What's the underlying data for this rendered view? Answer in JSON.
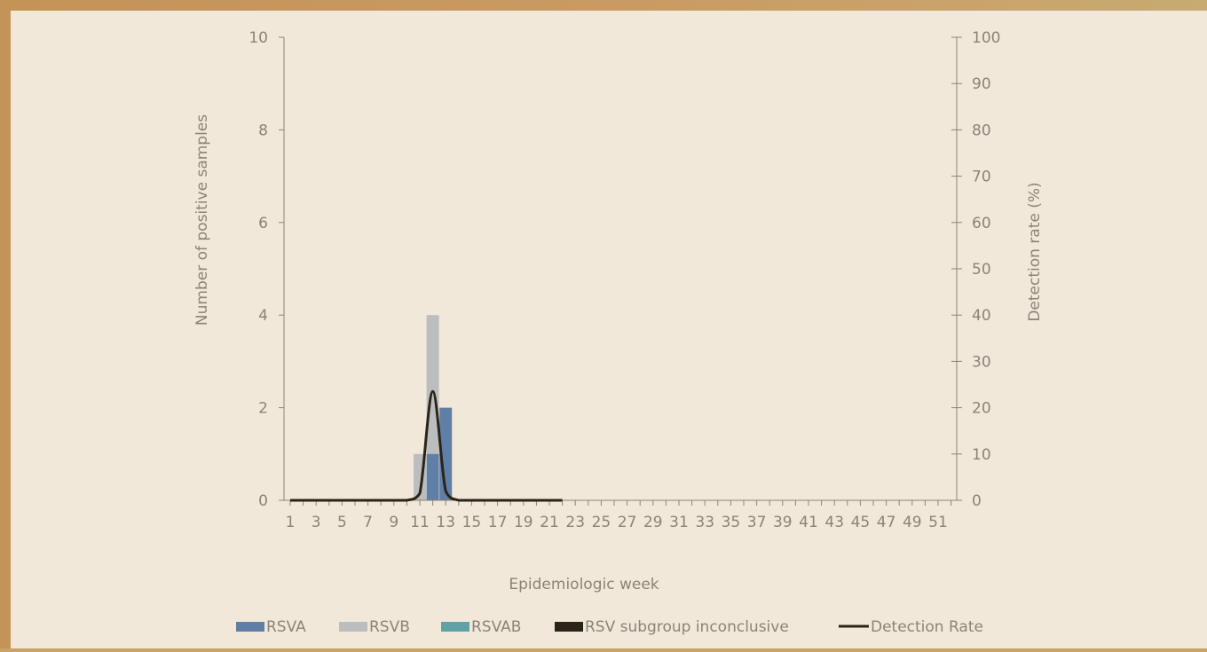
{
  "chart_data": {
    "type": "bar",
    "x_label": "Epidemiologic week",
    "y_left_label": "Number of positive samples",
    "y_right_label": "Detection rate (%)",
    "y_left_range": [
      0,
      10
    ],
    "y_left_ticks": [
      "0",
      "2",
      "4",
      "6",
      "8",
      "10"
    ],
    "y_right_range": [
      0,
      100
    ],
    "y_right_ticks": [
      "0",
      "10",
      "20",
      "30",
      "40",
      "50",
      "60",
      "70",
      "80",
      "90",
      "100"
    ],
    "week_labels": [
      "1",
      "3",
      "5",
      "7",
      "9",
      "11",
      "13",
      "15",
      "17",
      "19",
      "21",
      "23",
      "25",
      "27",
      "29",
      "31",
      "33",
      "35",
      "37",
      "39",
      "41",
      "43",
      "45",
      "47",
      "49",
      "51"
    ],
    "weeks": [
      1,
      2,
      3,
      4,
      5,
      6,
      7,
      8,
      9,
      10,
      11,
      12,
      13,
      14,
      15,
      16,
      17,
      18,
      19,
      20,
      21,
      22,
      23,
      24,
      25,
      26,
      27,
      28,
      29,
      30,
      31,
      32,
      33,
      34,
      35,
      36,
      37,
      38,
      39,
      40,
      41,
      42,
      43,
      44,
      45,
      46,
      47,
      48,
      49,
      50,
      51,
      52
    ],
    "bars": [
      {
        "week": 11,
        "series": "RSVB",
        "value": 1
      },
      {
        "week": 12,
        "series": "RSVB",
        "value": 4
      },
      {
        "week": 12,
        "series": "RSVA",
        "value": 1
      },
      {
        "week": 13,
        "series": "RSVA",
        "value": 2
      }
    ],
    "detection_rate": {
      "weeks": [
        1,
        2,
        3,
        4,
        5,
        6,
        7,
        8,
        9,
        10,
        11,
        12,
        13,
        14,
        15,
        16,
        17,
        18,
        19,
        20,
        21,
        22
      ],
      "values": [
        0,
        0,
        0,
        0,
        0,
        0,
        0,
        0,
        0,
        0,
        1.5,
        23.5,
        2,
        0,
        0,
        0,
        0,
        0,
        0,
        0,
        0,
        0
      ]
    },
    "legend": [
      {
        "name": "RSVA",
        "color": "#5f7fa6",
        "kind": "box"
      },
      {
        "name": "RSVB",
        "color": "#bcbdbf",
        "kind": "box"
      },
      {
        "name": "RSVAB",
        "color": "#5ea2a8",
        "kind": "box"
      },
      {
        "name": "RSV subgroup inconclusive",
        "color": "#2a2418",
        "kind": "box"
      },
      {
        "name": "Detection Rate",
        "color": "#2a2418",
        "kind": "line"
      }
    ],
    "legend_position": "bottom"
  }
}
